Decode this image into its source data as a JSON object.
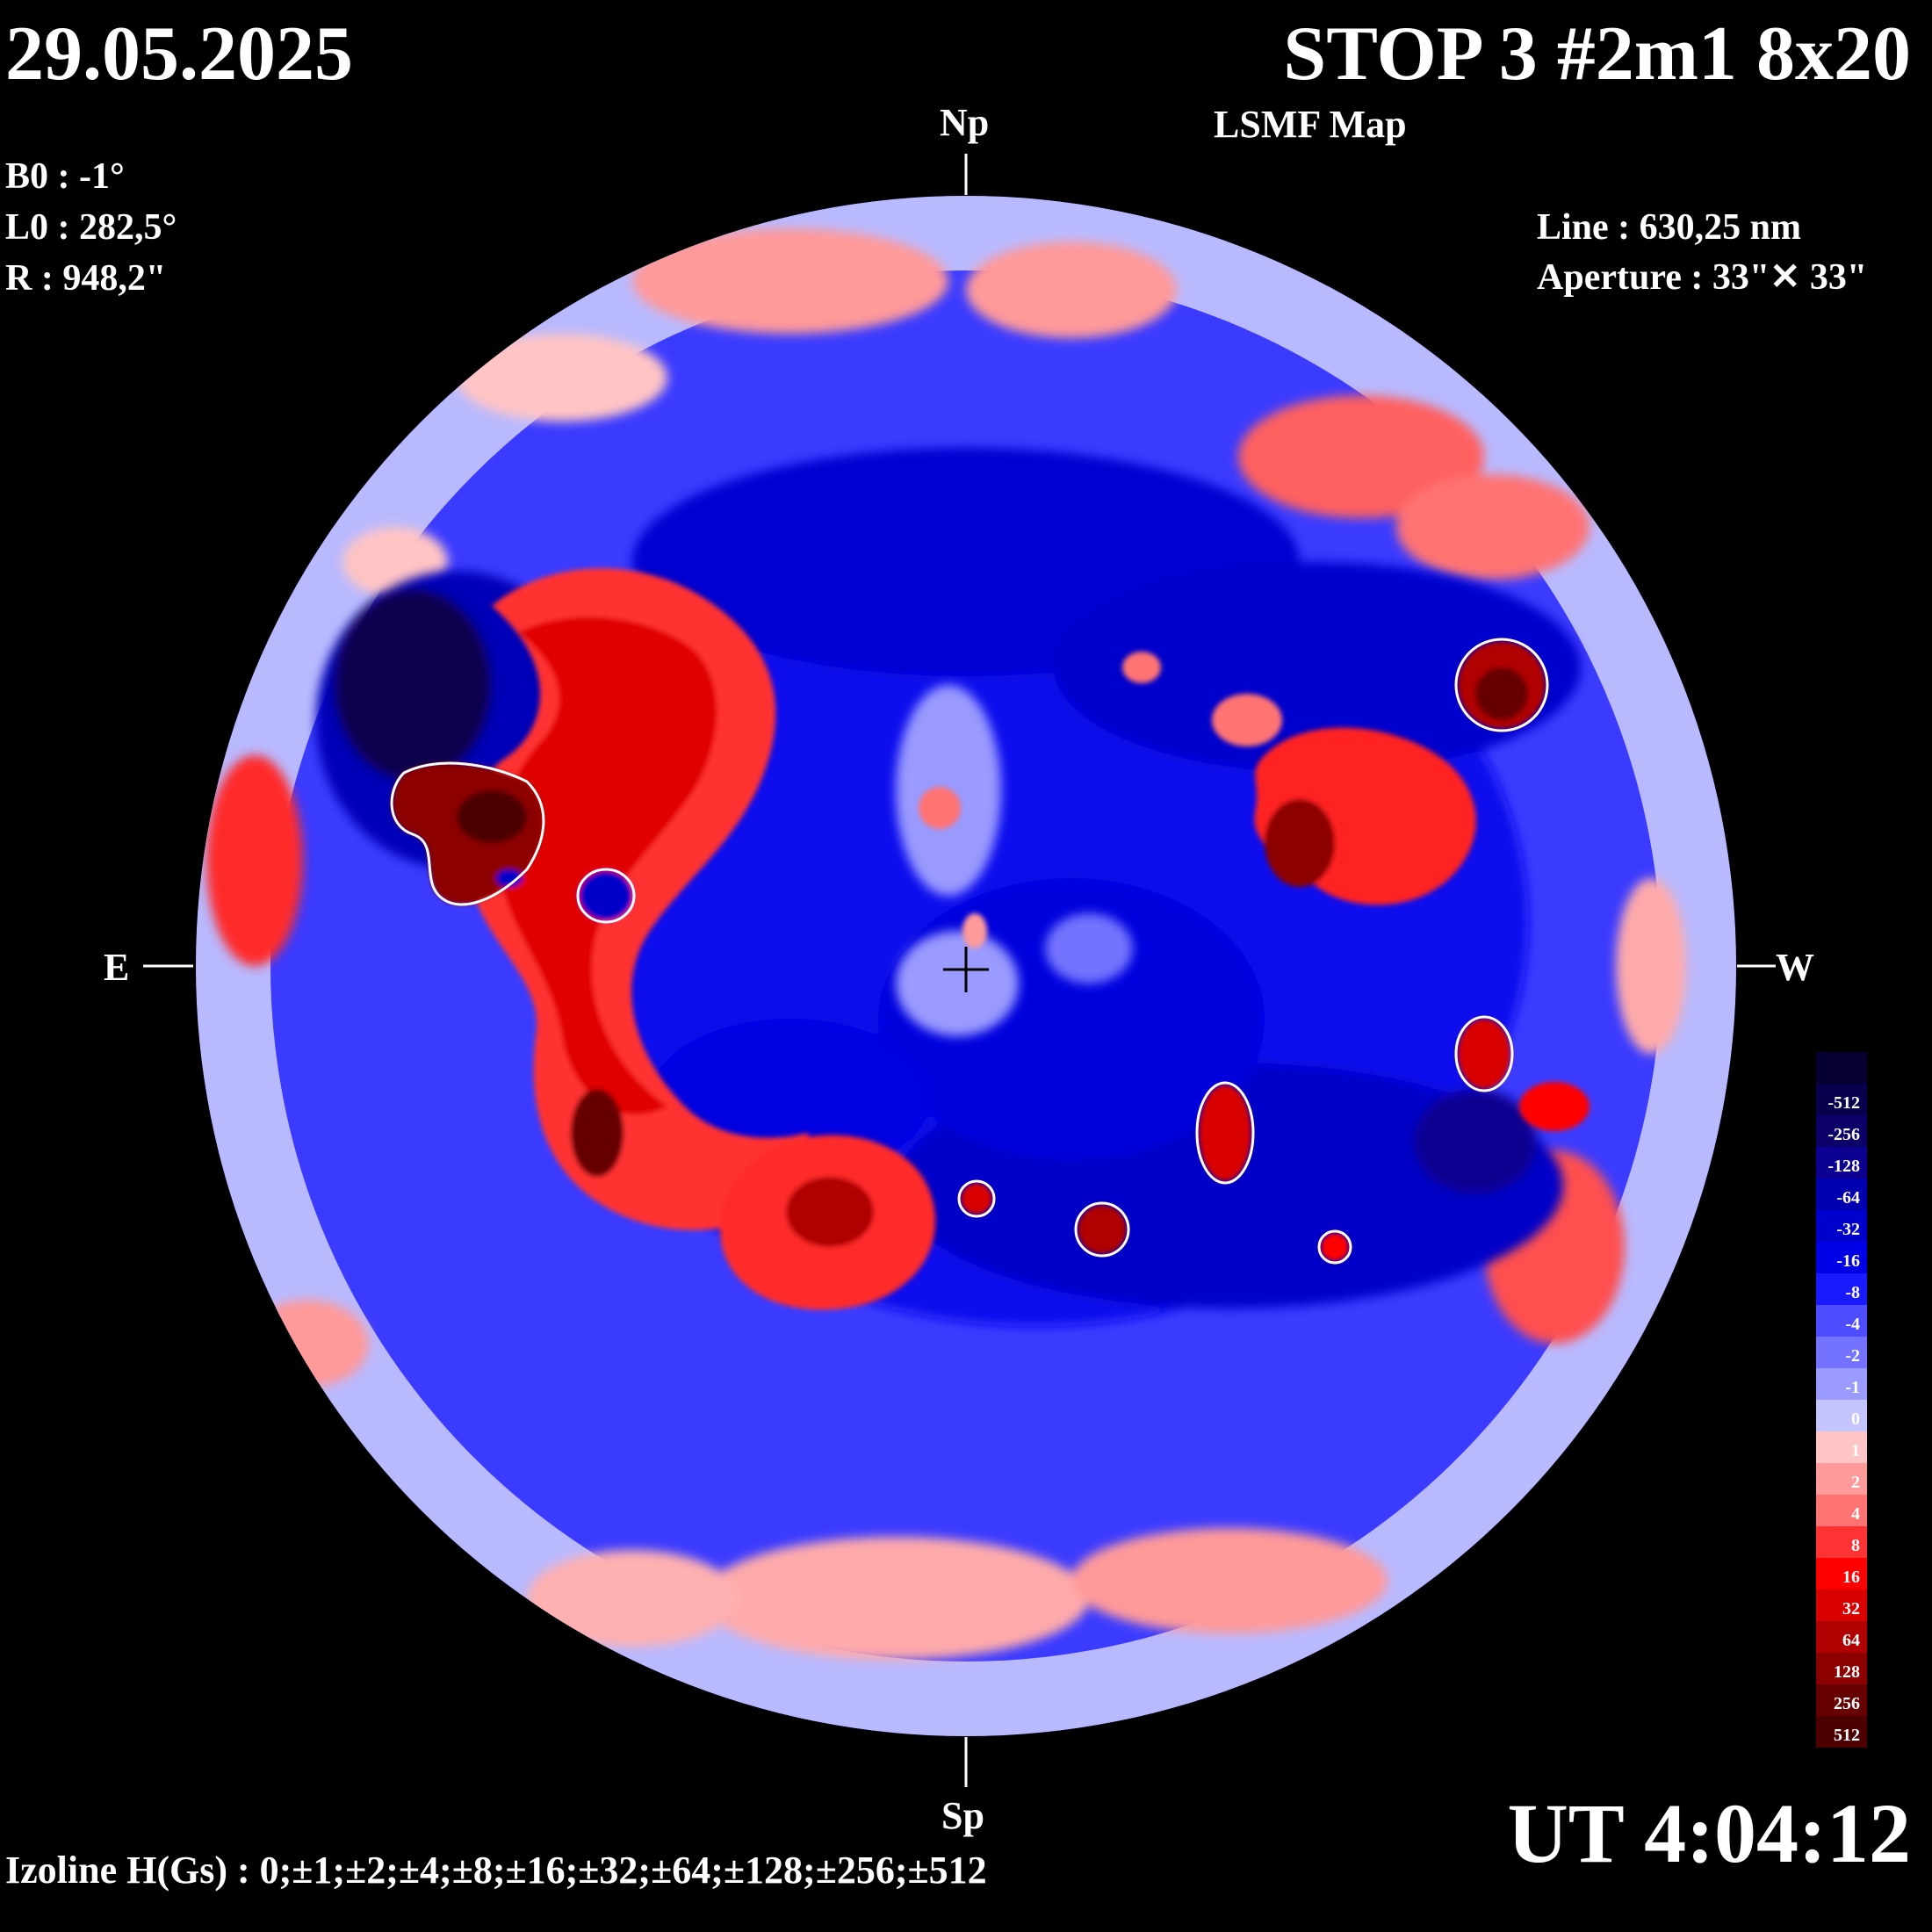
{
  "header": {
    "date": "29.05.2025",
    "title": "STOP 3 #2m1 8x20",
    "subtitle": "LSMF  Map"
  },
  "params": {
    "b0": "B0 : -1°",
    "l0": "L0 : 282,5°",
    "r": "R  : 948,2\""
  },
  "instrument": {
    "line": "Line :  630,25 nm",
    "aperture": "Aperture : 33\"✕ 33\""
  },
  "directions": {
    "north": "Np",
    "south": "Sp",
    "east": "E",
    "west": "W"
  },
  "footer": {
    "ut": "UT 4:04:12",
    "izoline": "Izoline H(Gs) : 0;±1;±2;±4;±8;±16;±32;±64;±128;±256;±512"
  },
  "colorbar": {
    "levels": [
      {
        "label": "",
        "color": "#050030"
      },
      {
        "label": "-512",
        "color": "#07004d"
      },
      {
        "label": "-256",
        "color": "#0a0068"
      },
      {
        "label": "-128",
        "color": "#0b0090"
      },
      {
        "label": "-64",
        "color": "#0000b0"
      },
      {
        "label": "-32",
        "color": "#0000cc"
      },
      {
        "label": "-16",
        "color": "#0000e6"
      },
      {
        "label": "-8",
        "color": "#1a1aff"
      },
      {
        "label": "-4",
        "color": "#4d4dff"
      },
      {
        "label": "-2",
        "color": "#7373ff"
      },
      {
        "label": "-1",
        "color": "#9a9aff"
      },
      {
        "label": "0",
        "color": "#c4c4ff"
      },
      {
        "label": "1",
        "color": "#ffc4c4"
      },
      {
        "label": "2",
        "color": "#ff9a9a"
      },
      {
        "label": "4",
        "color": "#ff7373"
      },
      {
        "label": "8",
        "color": "#ff3333"
      },
      {
        "label": "16",
        "color": "#ff0000"
      },
      {
        "label": "32",
        "color": "#d90000"
      },
      {
        "label": "64",
        "color": "#b00000"
      },
      {
        "label": "128",
        "color": "#8c0000"
      },
      {
        "label": "256",
        "color": "#660000"
      },
      {
        "label": "512",
        "color": "#4d0000"
      }
    ]
  }
}
